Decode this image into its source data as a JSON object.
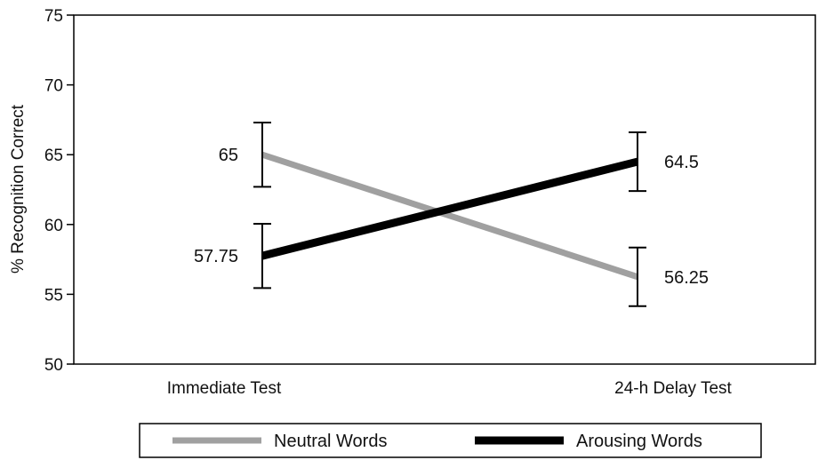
{
  "chart_data": {
    "type": "line",
    "title": "",
    "xlabel": "",
    "ylabel": "% Recognition Correct",
    "categories": [
      "Immediate Test",
      "24-h Delay Test"
    ],
    "ylim": [
      50,
      75
    ],
    "yticks": [
      50,
      55,
      60,
      65,
      70,
      75
    ],
    "grid": false,
    "legend_position": "bottom",
    "series": [
      {
        "name": "Neutral Words",
        "color": "#a0a0a0",
        "values": [
          65,
          56.25
        ],
        "labels": [
          "65",
          "56.25"
        ],
        "error": [
          2.3,
          2.1
        ]
      },
      {
        "name": "Arousing Words",
        "color": "#000000",
        "values": [
          57.75,
          64.5
        ],
        "labels": [
          "57.75",
          "64.5"
        ],
        "error": [
          2.3,
          2.1
        ]
      }
    ]
  }
}
